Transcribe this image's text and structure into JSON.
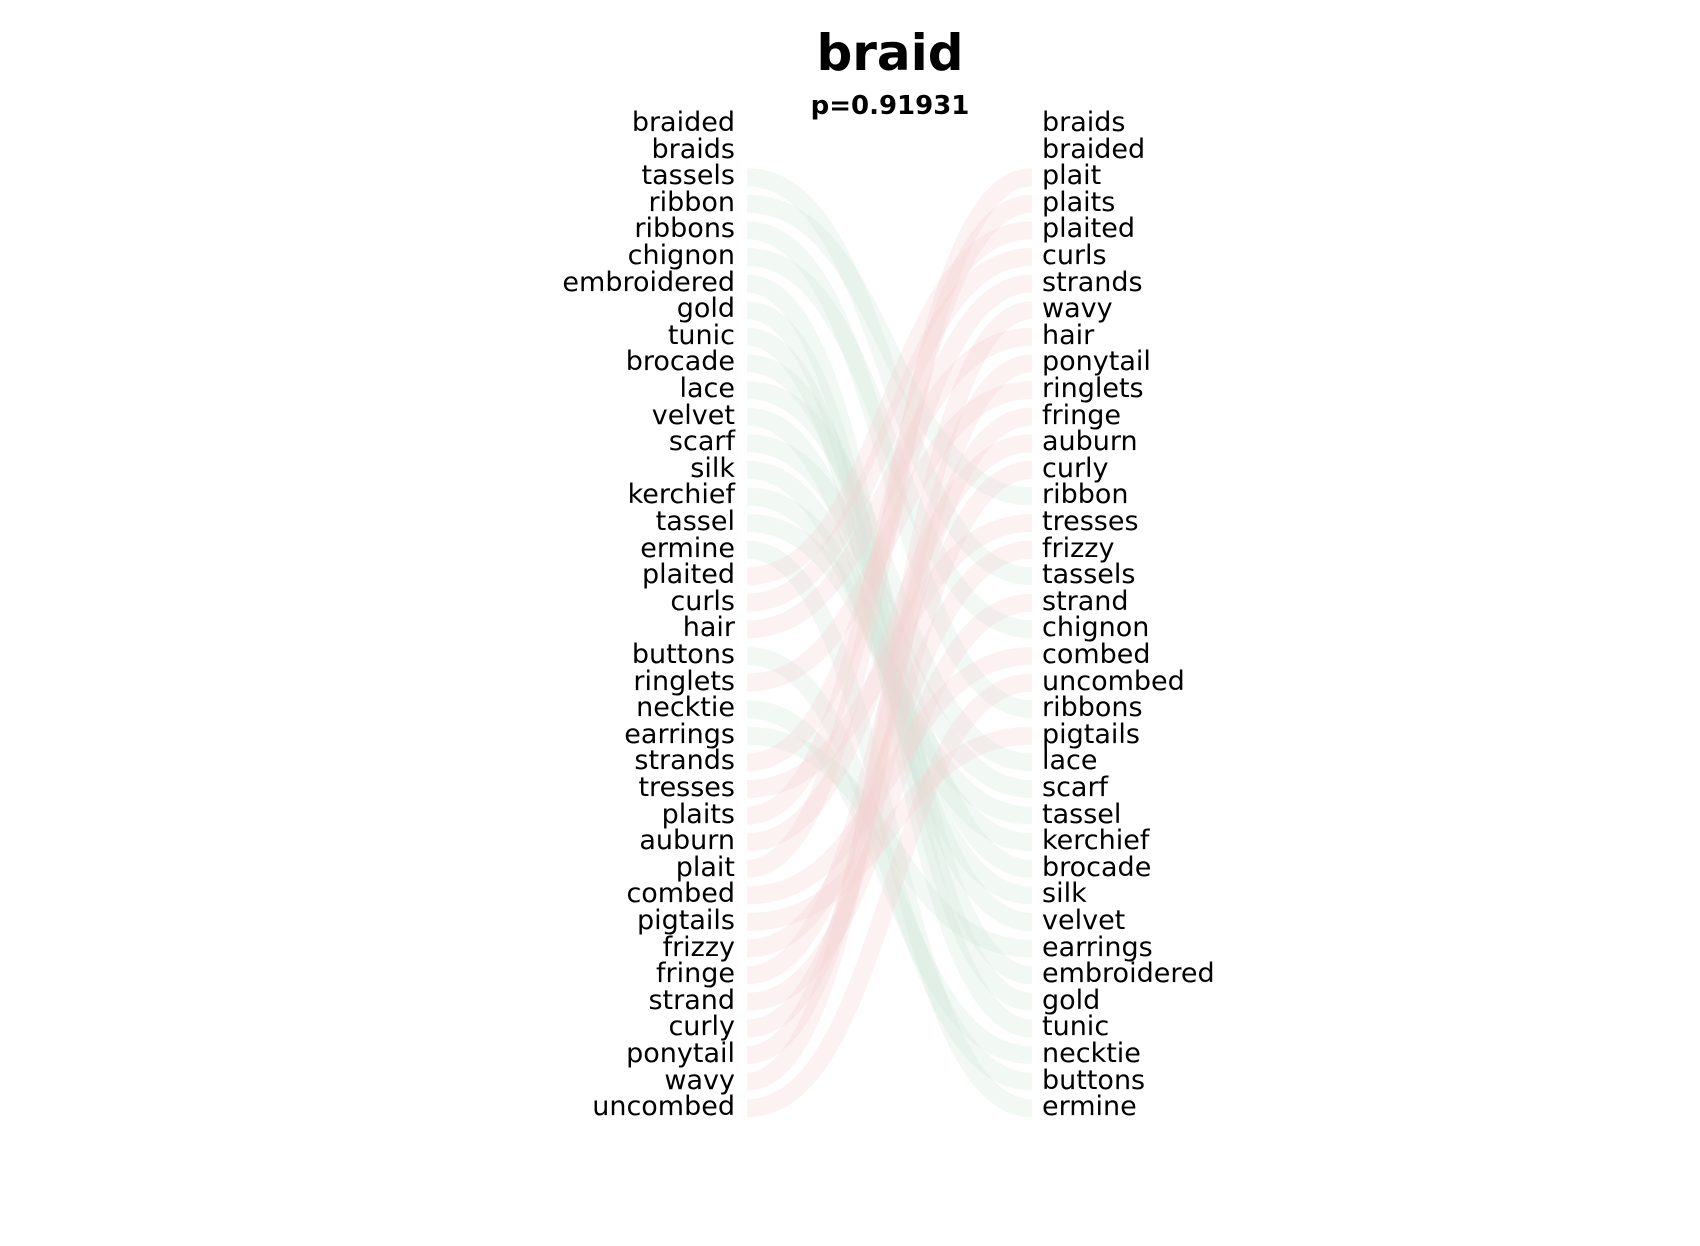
{
  "title": "braid",
  "subtitle": "p=0.91931",
  "left_words": [
    "braided",
    "braids",
    "tassels",
    "ribbon",
    "ribbons",
    "chignon",
    "embroidered",
    "gold",
    "tunic",
    "brocade",
    "lace",
    "velvet",
    "scarf",
    "silk",
    "kerchief",
    "tassel",
    "ermine",
    "plaited",
    "curls",
    "hair",
    "buttons",
    "ringlets",
    "necktie",
    "earrings",
    "strands",
    "tresses",
    "plaits",
    "auburn",
    "plait",
    "combed",
    "pigtails",
    "frizzy",
    "fringe",
    "strand",
    "curly",
    "ponytail",
    "wavy",
    "uncombed"
  ],
  "right_words": [
    "braids",
    "braided",
    "plait",
    "plaits",
    "plaited",
    "curls",
    "strands",
    "wavy",
    "hair",
    "ponytail",
    "ringlets",
    "fringe",
    "auburn",
    "curly",
    "ribbon",
    "tresses",
    "frizzy",
    "tassels",
    "strand",
    "chignon",
    "combed",
    "uncombed",
    "ribbons",
    "pigtails",
    "lace",
    "scarf",
    "tassel",
    "kerchief",
    "brocade",
    "silk",
    "velvet",
    "earrings",
    "embroidered",
    "gold",
    "tunic",
    "necktie",
    "buttons",
    "ermine"
  ],
  "colors": {
    "left_link": "#f5d0d0",
    "right_link": "#cfe6d9",
    "mid_link": "#f3f0d6"
  }
}
